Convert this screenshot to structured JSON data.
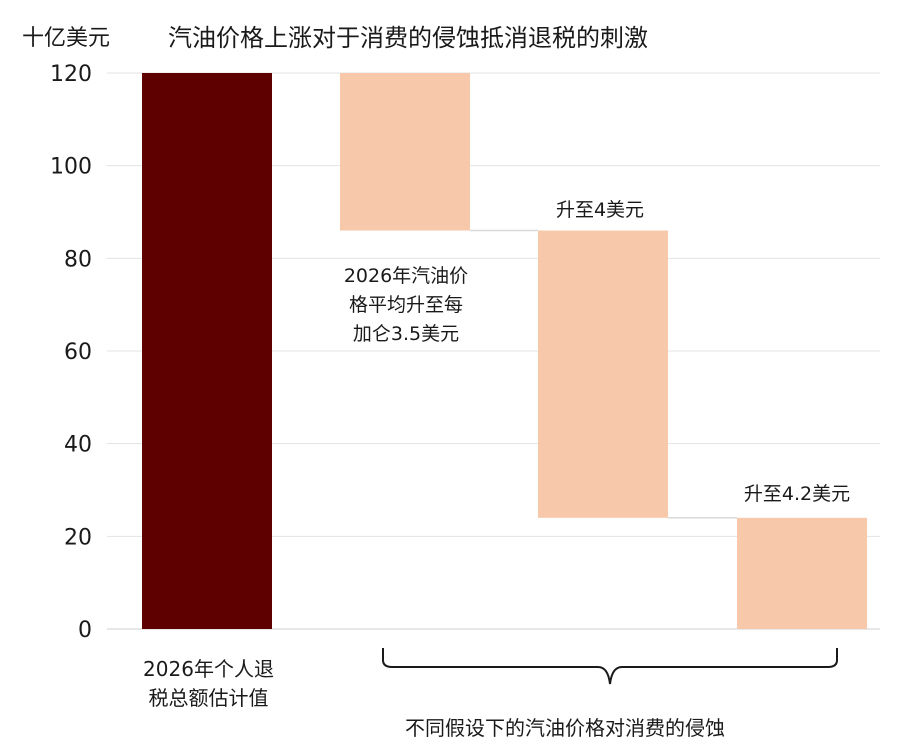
{
  "chart_data": {
    "type": "bar",
    "title": "汽油价格上涨对于消费的侵蚀抵消退税的刺激",
    "unit_label": "十亿美元",
    "ylim": [
      0,
      120
    ],
    "y_ticks": [
      0,
      20,
      40,
      60,
      80,
      100,
      120
    ],
    "grid": true,
    "bars": [
      {
        "label": "2026年个人退税总额估计值",
        "base": 0,
        "top": 120,
        "color": "#5e0000"
      },
      {
        "label": "2026年汽油价格平均升至每加仑3.5美元",
        "base": 86,
        "top": 120,
        "color": "#f7c8aa"
      },
      {
        "label": "升至4美元",
        "base": 24,
        "top": 86,
        "color": "#f7c8aa"
      },
      {
        "label": "升至4.2美元",
        "base": 0,
        "top": 24,
        "color": "#f7c8aa"
      }
    ],
    "bracket_label": "不同假设下的汽油价格对消费的侵蚀"
  },
  "labels": {
    "cat1_line1": "2026年个人退",
    "cat1_line2": "税总额估计值",
    "ann1_line1": "2026年汽油价",
    "ann1_line2": "格平均升至每",
    "ann1_line3": "加仑3.5美元",
    "ann2": "升至4美元",
    "ann3": "升至4.2美元"
  }
}
